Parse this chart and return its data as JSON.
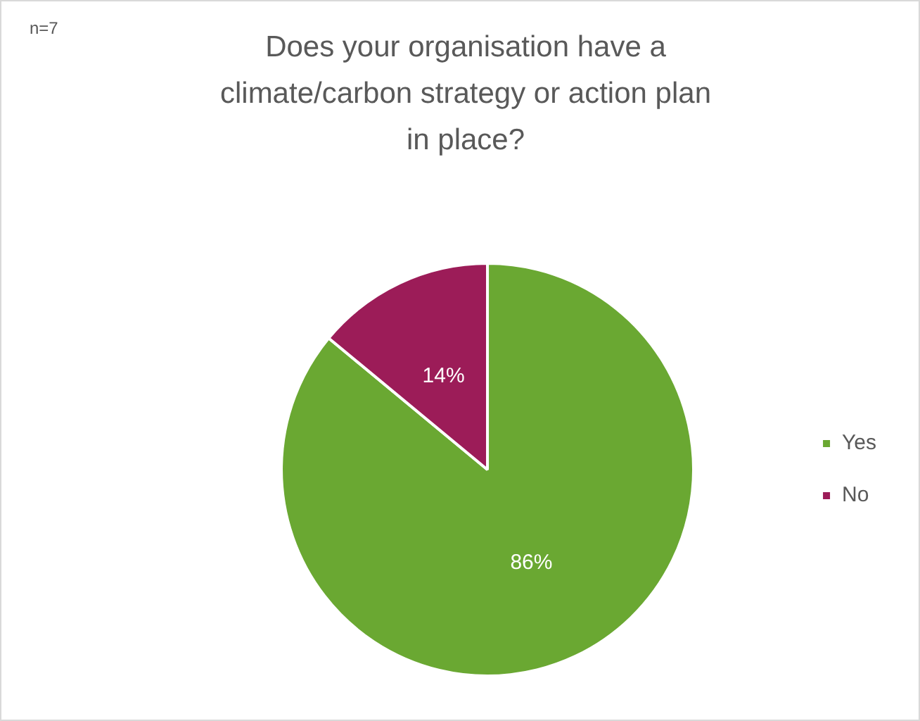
{
  "chart_data": {
    "type": "pie",
    "title": "Does your organisation have a climate/carbon strategy or action plan in place?",
    "annotations": [
      "n=7"
    ],
    "categories": [
      "Yes",
      "No"
    ],
    "values": [
      86,
      14
    ],
    "colors": [
      "#6aa832",
      "#9c1c58"
    ],
    "value_labels": [
      "86%",
      "14%"
    ],
    "legend": "right"
  }
}
